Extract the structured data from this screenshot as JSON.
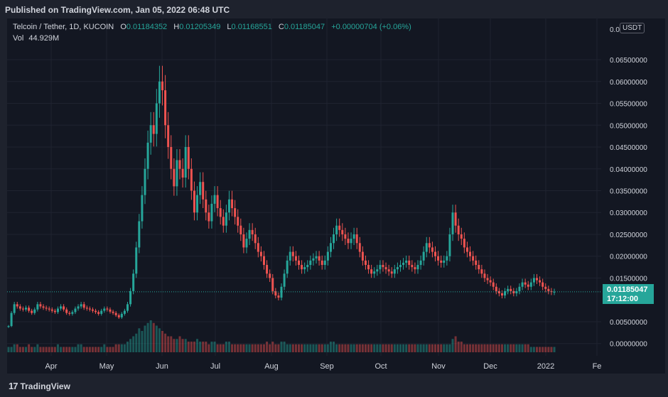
{
  "header": {
    "published": "Published on TradingView.com, Jan 05, 2022 06:48 UTC"
  },
  "legend": {
    "symbol": "Telcoin / Tether, 1D, KUCOIN",
    "o_label": "O",
    "o": "0.01184352",
    "h_label": "H",
    "h": "0.01205349",
    "l_label": "L",
    "l": "0.01168551",
    "c_label": "C",
    "c": "0.01185047",
    "change": "+0.00000704 (+0.06%)",
    "vol_label": "Vol",
    "vol": "44.929M"
  },
  "unit": "USDT",
  "last_price": {
    "value": "0.01185047",
    "countdown": "17:12:00"
  },
  "footer": {
    "brand": "TradingView",
    "brand_mark": "17"
  },
  "colors": {
    "up": "#26a69a",
    "down": "#ef5350",
    "bg": "#131722",
    "grid": "#1f2330"
  },
  "chart_data": {
    "type": "candlestick",
    "y_axis_ticks": [
      "0.06500000",
      "0.06000000",
      "0.05500000",
      "0.05000000",
      "0.04500000",
      "0.04000000",
      "0.03500000",
      "0.03000000",
      "0.02500000",
      "0.02000000",
      "0.01500000",
      "0.00500000",
      "0.00000000"
    ],
    "y_top_tick_partial": "0.0",
    "ylim": [
      -0.002,
      0.072
    ],
    "x_axis_labels": [
      "Apr",
      "May",
      "Jun",
      "Jul",
      "Aug",
      "Sep",
      "Oct",
      "Nov",
      "Dec",
      "2022",
      "Fe"
    ],
    "closes_approx": [
      0.004,
      0.007,
      0.009,
      0.0085,
      0.008,
      0.0078,
      0.0082,
      0.0075,
      0.007,
      0.0078,
      0.009,
      0.0085,
      0.0082,
      0.008,
      0.0078,
      0.0075,
      0.0072,
      0.008,
      0.0085,
      0.0078,
      0.007,
      0.0068,
      0.0072,
      0.008,
      0.0085,
      0.009,
      0.0082,
      0.008,
      0.0078,
      0.0075,
      0.0072,
      0.0068,
      0.0075,
      0.008,
      0.0078,
      0.0073,
      0.007,
      0.0065,
      0.006,
      0.0068,
      0.0075,
      0.009,
      0.012,
      0.016,
      0.022,
      0.028,
      0.034,
      0.04,
      0.046,
      0.05,
      0.048,
      0.055,
      0.06,
      0.058,
      0.05,
      0.045,
      0.04,
      0.036,
      0.042,
      0.04,
      0.038,
      0.045,
      0.04,
      0.035,
      0.03,
      0.034,
      0.037,
      0.033,
      0.03,
      0.028,
      0.032,
      0.034,
      0.031,
      0.029,
      0.027,
      0.03,
      0.033,
      0.031,
      0.029,
      0.027,
      0.025,
      0.022,
      0.024,
      0.026,
      0.025,
      0.023,
      0.021,
      0.02,
      0.018,
      0.016,
      0.015,
      0.012,
      0.011,
      0.0105,
      0.013,
      0.016,
      0.019,
      0.021,
      0.02,
      0.019,
      0.018,
      0.017,
      0.0175,
      0.018,
      0.019,
      0.0195,
      0.02,
      0.019,
      0.018,
      0.019,
      0.021,
      0.023,
      0.025,
      0.027,
      0.026,
      0.025,
      0.024,
      0.023,
      0.024,
      0.025,
      0.023,
      0.021,
      0.019,
      0.018,
      0.017,
      0.016,
      0.0165,
      0.017,
      0.018,
      0.0175,
      0.017,
      0.0165,
      0.016,
      0.017,
      0.0175,
      0.018,
      0.0185,
      0.019,
      0.018,
      0.0175,
      0.017,
      0.018,
      0.019,
      0.021,
      0.023,
      0.022,
      0.021,
      0.02,
      0.019,
      0.0185,
      0.019,
      0.02,
      0.025,
      0.03,
      0.027,
      0.025,
      0.024,
      0.022,
      0.021,
      0.02,
      0.019,
      0.018,
      0.017,
      0.016,
      0.015,
      0.0145,
      0.014,
      0.013,
      0.012,
      0.0115,
      0.011,
      0.012,
      0.0125,
      0.012,
      0.0115,
      0.012,
      0.013,
      0.014,
      0.0135,
      0.013,
      0.014,
      0.015,
      0.0145,
      0.014,
      0.013,
      0.0125,
      0.012,
      0.0118,
      0.01185
    ],
    "volume_approx": [
      2,
      2,
      3,
      3,
      2,
      2,
      2,
      3,
      2,
      2,
      3,
      2,
      2,
      2,
      2,
      2,
      2,
      3,
      2,
      2,
      2,
      2,
      2,
      2,
      3,
      3,
      2,
      2,
      2,
      2,
      2,
      2,
      2,
      3,
      2,
      2,
      2,
      3,
      3,
      3,
      3,
      4,
      5,
      6,
      7,
      9,
      8,
      10,
      11,
      12,
      11,
      10,
      9,
      8,
      7,
      6,
      6,
      5,
      5,
      6,
      5,
      5,
      4,
      4,
      4,
      5,
      4,
      4,
      4,
      3,
      4,
      4,
      3,
      3,
      3,
      4,
      4,
      3,
      3,
      3,
      3,
      3,
      3,
      3,
      3,
      3,
      3,
      3,
      3,
      4,
      3,
      4,
      3,
      3,
      4,
      4,
      3,
      3,
      3,
      3,
      3,
      3,
      3,
      3,
      3,
      3,
      3,
      3,
      3,
      3,
      3,
      4,
      4,
      3,
      3,
      3,
      3,
      3,
      3,
      3,
      3,
      3,
      3,
      3,
      3,
      3,
      3,
      3,
      3,
      3,
      3,
      3,
      3,
      3,
      3,
      3,
      3,
      3,
      3,
      3,
      3,
      3,
      3,
      3,
      3,
      3,
      3,
      3,
      3,
      3,
      3,
      3,
      3,
      5,
      6,
      4,
      4,
      3,
      3,
      3,
      3,
      3,
      3,
      3,
      3,
      3,
      3,
      3,
      3,
      3,
      3,
      3,
      3,
      3,
      3,
      3,
      3,
      3,
      3,
      3,
      2,
      2,
      2,
      2,
      2,
      2,
      2,
      2,
      2,
      2,
      2,
      2,
      2,
      2
    ]
  }
}
